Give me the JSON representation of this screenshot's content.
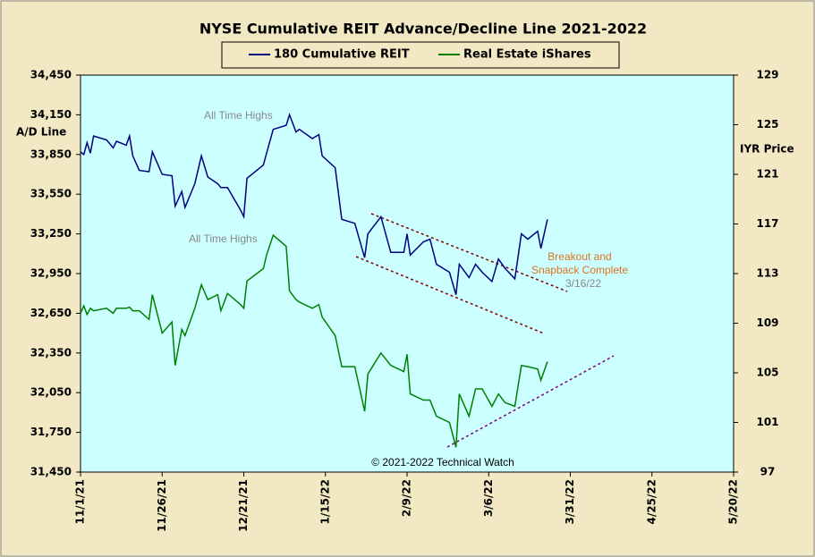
{
  "chart_data": {
    "type": "line",
    "title": "NYSE Cumulative  REIT Advance/Decline  Line 2021-2022",
    "y_label": "A/D Line",
    "y2_label": "IYR Price",
    "annotations": [
      "All Time Highs",
      "All Time Highs",
      "Breakout and",
      "Snapback Complete",
      "3/16/22",
      "© 2021-2022  Technical Watch"
    ],
    "x": [
      "11/1/21",
      "11/2/21",
      "11/3/21",
      "11/4/21",
      "11/5/21",
      "11/9/21",
      "11/11/21",
      "11/12/21",
      "11/15/21",
      "11/16/21",
      "11/17/21",
      "11/19/21",
      "11/22/21",
      "11/23/21",
      "11/26/21",
      "11/29/21",
      "11/30/21",
      "12/2/21",
      "12/3/21",
      "12/6/21",
      "12/8/21",
      "12/10/21",
      "12/13/21",
      "12/14/21",
      "12/16/21",
      "12/20/21",
      "12/21/21",
      "12/22/21",
      "12/27/21",
      "12/28/21",
      "12/30/21",
      "1/3/22",
      "1/4/22",
      "1/6/22",
      "1/7/22",
      "1/11/22",
      "1/13/22",
      "1/14/22",
      "1/18/22",
      "1/20/22",
      "1/24/22",
      "1/27/22",
      "1/28/22",
      "2/1/22",
      "2/4/22",
      "2/8/22",
      "2/9/22",
      "2/10/22",
      "2/14/22",
      "2/16/22",
      "2/18/22",
      "2/22/22",
      "2/24/22",
      "2/25/22",
      "2/28/22",
      "3/2/22",
      "3/4/22",
      "3/7/22",
      "3/9/22",
      "3/11/22",
      "3/14/22",
      "3/16/22",
      "3/18/22",
      "3/21/22",
      "3/22/22",
      "3/24/22"
    ],
    "series": [
      {
        "name": "180 Cumulative REIT",
        "color": "#000080",
        "axis": "y",
        "values": [
          33870,
          33850,
          33940,
          33860,
          33990,
          33960,
          33900,
          33950,
          33920,
          33990,
          33840,
          33730,
          33720,
          33870,
          33700,
          33690,
          33460,
          33570,
          33450,
          33630,
          33840,
          33680,
          33630,
          33600,
          33600,
          33430,
          33380,
          33670,
          33770,
          33860,
          34040,
          34070,
          34150,
          34020,
          34040,
          33970,
          34000,
          33840,
          33750,
          33360,
          33330,
          33070,
          33250,
          33380,
          33110,
          33110,
          33250,
          33090,
          33190,
          33210,
          33020,
          32960,
          32790,
          33020,
          32920,
          33020,
          32960,
          32890,
          33060,
          32990,
          32910,
          33250,
          33210,
          33270,
          33140,
          33360
        ]
      },
      {
        "name": "Real Estate iShares",
        "color": "#008000",
        "axis": "y2",
        "values": [
          109.8,
          110.4,
          109.7,
          110.2,
          110.0,
          110.2,
          109.8,
          110.2,
          110.2,
          110.3,
          110.0,
          110.0,
          109.3,
          111.3,
          108.2,
          109.1,
          105.6,
          108.5,
          108.0,
          110.2,
          112.1,
          110.9,
          111.3,
          110.0,
          111.4,
          110.5,
          110.2,
          112.4,
          113.4,
          114.5,
          116.1,
          115.2,
          111.6,
          110.9,
          110.7,
          110.2,
          110.5,
          109.5,
          108.0,
          105.5,
          105.5,
          101.9,
          104.9,
          106.6,
          105.6,
          105.1,
          106.5,
          103.3,
          102.8,
          102.8,
          101.5,
          101.0,
          99.0,
          103.3,
          101.5,
          103.7,
          103.7,
          102.3,
          103.3,
          102.6,
          102.3,
          105.6,
          105.5,
          105.3,
          104.4,
          105.9
        ]
      }
    ],
    "xlim": [
      "11/1/21",
      "5/20/22"
    ],
    "xticks": [
      "11/1/21",
      "11/26/21",
      "12/21/21",
      "1/15/22",
      "2/9/22",
      "3/6/22",
      "3/31/22",
      "4/25/22",
      "5/20/22"
    ],
    "ylim": [
      31450,
      34450
    ],
    "yticks": [
      {
        "value": 31450,
        "label": "31,450"
      },
      {
        "value": 31750,
        "label": "31,750"
      },
      {
        "value": 32050,
        "label": "32,050"
      },
      {
        "value": 32350,
        "label": "32,350"
      },
      {
        "value": 32650,
        "label": "32,650"
      },
      {
        "value": 32950,
        "label": "32,950"
      },
      {
        "value": 33250,
        "label": "33,250"
      },
      {
        "value": 33550,
        "label": "33,550"
      },
      {
        "value": 33850,
        "label": "33,850"
      },
      {
        "value": 34150,
        "label": "34,150"
      },
      {
        "value": 34450,
        "label": "34,450"
      }
    ],
    "y2lim": [
      97,
      129
    ],
    "y2ticks": [
      97,
      101,
      105,
      109,
      113,
      117,
      121,
      125,
      129
    ]
  }
}
